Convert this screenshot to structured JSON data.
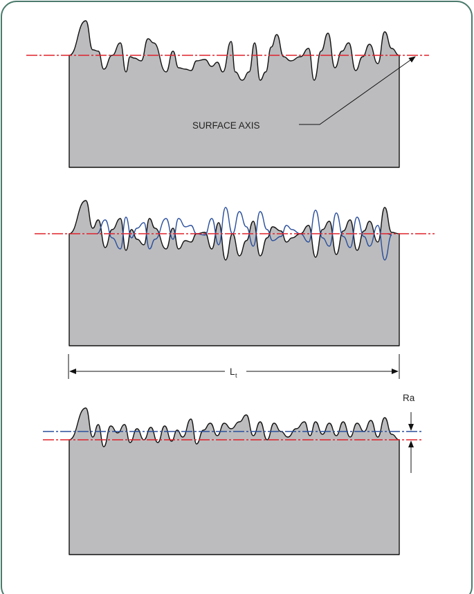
{
  "colors": {
    "frame": "#4a7a6c",
    "body_fill": "#bcbcbe",
    "outline": "#111111",
    "axis_line": "#e0202a",
    "mirror_line": "#2a4f9c"
  },
  "panel_1": {
    "label": "SURFACE AXIS"
  },
  "panel_2": {
    "dimension_label": "L",
    "dimension_subscript": "t"
  },
  "panel_3": {
    "dimension_label": "Ra"
  }
}
